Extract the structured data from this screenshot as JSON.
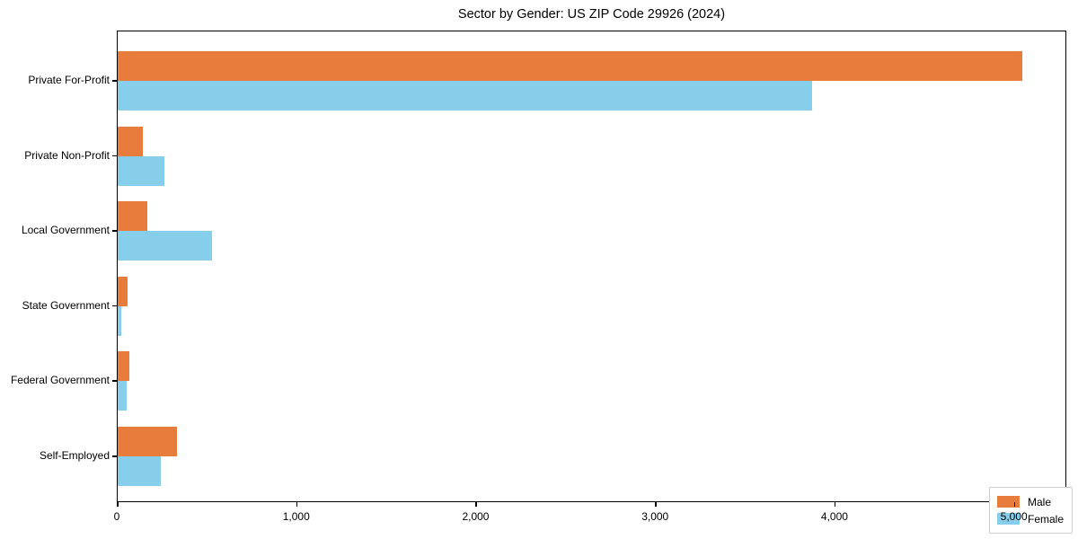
{
  "title": "Sector by Gender: US ZIP Code 29926 (2024)",
  "chart_data": {
    "type": "bar",
    "orientation": "horizontal",
    "title": "Sector by Gender: US ZIP Code 29926 (2024)",
    "xlabel": "",
    "ylabel": "",
    "categories": [
      "Private For-Profit",
      "Private Non-Profit",
      "Local Government",
      "State Government",
      "Federal Government",
      "Self-Employed"
    ],
    "series": [
      {
        "name": "Male",
        "color": "#e87c3c",
        "values": [
          5040,
          140,
          165,
          55,
          65,
          330
        ]
      },
      {
        "name": "Female",
        "color": "#87ceeb",
        "values": [
          3870,
          260,
          525,
          20,
          50,
          240
        ]
      }
    ],
    "xlim": [
      0,
      5292
    ],
    "x_ticks": [
      {
        "value": 0,
        "label": "0"
      },
      {
        "value": 1000,
        "label": "1,000"
      },
      {
        "value": 2000,
        "label": "2,000"
      },
      {
        "value": 3000,
        "label": "3,000"
      },
      {
        "value": 4000,
        "label": "4,000"
      },
      {
        "value": 5000,
        "label": "5,000"
      }
    ],
    "grid": false,
    "legend_position": "lower right"
  },
  "colors": {
    "male": "#e87c3c",
    "female": "#87ceeb",
    "axis": "#000000",
    "legend_border": "#cccccc",
    "background": "#ffffff"
  }
}
